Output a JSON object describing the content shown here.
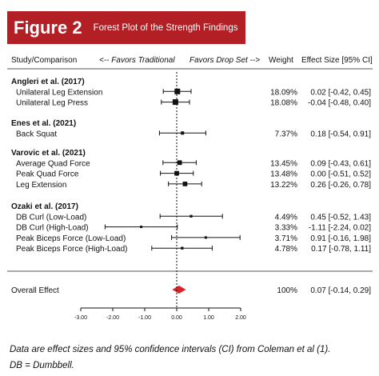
{
  "figure": {
    "label": "Figure 2",
    "title": "Forest Plot of the Strength Findings",
    "accent_color": "#b21f24"
  },
  "header": {
    "study_col": "Study/Comparison",
    "favors_left": "<-- Favors Traditional",
    "favors_right": "Favors Drop Set -->",
    "weight_col": "Weight",
    "effect_col": "Effect Size [95% CI]"
  },
  "chart_data": {
    "type": "forest",
    "xlim": [
      -3.0,
      2.0
    ],
    "x_ticks": [
      "-3.00",
      "-2.00",
      "-1.00",
      "0.00",
      "1.00",
      "2.00"
    ],
    "x_tick_values": [
      -3,
      -2,
      -1,
      0,
      1,
      2
    ],
    "reference_line": 0,
    "groups": [
      {
        "study": "Angleri et al. (2017)",
        "rows": [
          {
            "label": "Unilateral Leg Extension",
            "es": 0.02,
            "lo": -0.42,
            "hi": 0.45,
            "weight": "18.09%",
            "ci_text": "0.02 [-0.42, 0.45]"
          },
          {
            "label": "Unilateral Leg Press",
            "es": -0.04,
            "lo": -0.48,
            "hi": 0.4,
            "weight": "18.08%",
            "ci_text": "-0.04 [-0.48, 0.40]"
          }
        ]
      },
      {
        "study": "Enes et al. (2021)",
        "rows": [
          {
            "label": "Back Squat",
            "es": 0.18,
            "lo": -0.54,
            "hi": 0.91,
            "weight": "7.37%",
            "ci_text": "0.18 [-0.54, 0.91]"
          }
        ]
      },
      {
        "study": "Varovic et al. (2021)",
        "rows": [
          {
            "label": "Average Quad Force",
            "es": 0.09,
            "lo": -0.43,
            "hi": 0.61,
            "weight": "13.45%",
            "ci_text": "0.09 [-0.43, 0.61]"
          },
          {
            "label": "Peak Quad Force",
            "es": 0.0,
            "lo": -0.51,
            "hi": 0.52,
            "weight": "13.48%",
            "ci_text": "0.00 [-0.51, 0.52]"
          },
          {
            "label": "Leg Extension",
            "es": 0.26,
            "lo": -0.26,
            "hi": 0.78,
            "weight": "13.22%",
            "ci_text": "0.26 [-0.26, 0.78]"
          }
        ]
      },
      {
        "study": "Ozaki et al. (2017)",
        "rows": [
          {
            "label": "DB Curl (Low-Load)",
            "es": 0.45,
            "lo": -0.52,
            "hi": 1.43,
            "weight": "4.49%",
            "ci_text": "0.45 [-0.52, 1.43]"
          },
          {
            "label": "DB Curl (High-Load)",
            "es": -1.11,
            "lo": -2.24,
            "hi": 0.02,
            "weight": "3.33%",
            "ci_text": "-1.11 [-2.24, 0.02]"
          },
          {
            "label": "Peak Biceps Force (Low-Load)",
            "es": 0.91,
            "lo": -0.16,
            "hi": 1.98,
            "weight": "3.71%",
            "ci_text": "0.91 [-0.16, 1.98]"
          },
          {
            "label": "Peak Biceps Force (High-Load)",
            "es": 0.17,
            "lo": -0.78,
            "hi": 1.11,
            "weight": "4.78%",
            "ci_text": "0.17 [-0.78, 1.11]"
          }
        ]
      }
    ],
    "overall": {
      "label": "Overall Effect",
      "es": 0.07,
      "lo": -0.14,
      "hi": 0.29,
      "weight": "100%",
      "ci_text": "0.07 [-0.14, 0.29]",
      "color": "#d7262b"
    }
  },
  "captions": {
    "line1": "Data are effect sizes and 95% confidence intervals (CI) from Coleman et al (1).",
    "line2": "DB = Dumbbell."
  }
}
